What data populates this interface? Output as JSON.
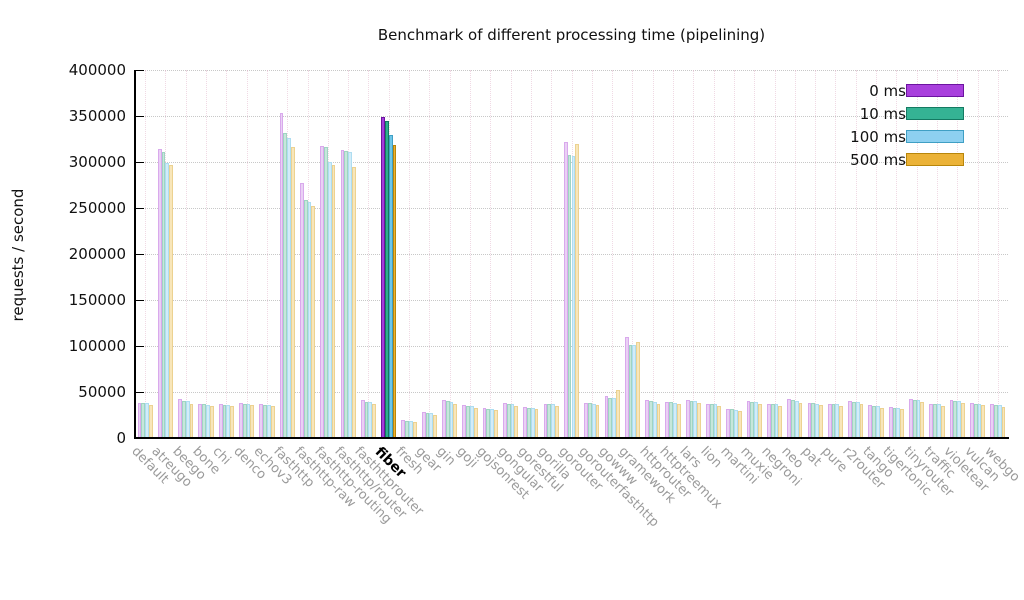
{
  "chart_data": {
    "type": "bar",
    "title": "Benchmark of different processing time (pipelining)",
    "ylabel": "requests / second",
    "xlabel": "",
    "ylim": [
      0,
      400000
    ],
    "ytick_step": 50000,
    "yticks": [
      0,
      50000,
      100000,
      150000,
      200000,
      250000,
      300000,
      350000,
      400000
    ],
    "grid": "dotted",
    "legend_position": "top-right",
    "highlight_category": "fiber",
    "series_names": [
      "0 ms",
      "10 ms",
      "100 ms",
      "500 ms"
    ],
    "series_colors_full": [
      "#a43ddb",
      "#2fae8f",
      "#6ec6e8",
      "#eeb02f"
    ],
    "series_borders_full": [
      "#6c14a0",
      "#147a62",
      "#3f9fc4",
      "#b8860b"
    ],
    "series_colors_pale": [
      "#ead0f5",
      "#c6e7db",
      "#d3ecf8",
      "#f8e6ba"
    ],
    "series_borders_pale": [
      "#d9a9ec",
      "#9fd4c2",
      "#aeddf1",
      "#ecd291"
    ],
    "legend_swatch_colors": [
      "#a940dd",
      "#35b394",
      "#8dd0f0",
      "#ebb237"
    ],
    "categories": [
      "default",
      "atreugo",
      "beego",
      "bone",
      "chi",
      "denco",
      "echov3",
      "fasthttp",
      "fasthttp-raw",
      "fasthttp-routing",
      "fasthttp/router",
      "fasthttprouter",
      "fiber",
      "fresh",
      "gear",
      "gin",
      "goji",
      "gojsonrest",
      "gongular",
      "gorestful",
      "gorilla",
      "gorouter",
      "gorouterfasthttp",
      "gowww",
      "gramework",
      "httprouter",
      "httptreemux",
      "lars",
      "lion",
      "martini",
      "muxie",
      "negroni",
      "neo",
      "pat",
      "pure",
      "r2router",
      "tango",
      "tigertonic",
      "tinyrouter",
      "traffic",
      "violetear",
      "vulcan",
      "webgo"
    ],
    "series": [
      {
        "name": "0 ms",
        "values": [
          38500,
          314000,
          42000,
          37500,
          36500,
          38000,
          37000,
          353000,
          277000,
          317000,
          313000,
          41000,
          349000,
          20000,
          28000,
          41000,
          35500,
          32500,
          38000,
          33500,
          37500,
          322000,
          38500,
          46000,
          110000,
          41000,
          39500,
          41000,
          37500,
          31500,
          40000,
          37500,
          42000,
          38500,
          37500,
          40000,
          35500,
          33500,
          42500,
          37500,
          41500,
          38000,
          36500
        ]
      },
      {
        "name": "10 ms",
        "values": [
          38000,
          311000,
          40500,
          36500,
          36000,
          37000,
          36000,
          332000,
          259000,
          316000,
          312000,
          39500,
          345000,
          19000,
          27000,
          40000,
          35000,
          32000,
          37000,
          33000,
          37000,
          308000,
          38000,
          44000,
          101000,
          40000,
          39000,
          40500,
          37000,
          31000,
          39500,
          37000,
          41000,
          38000,
          37000,
          39500,
          35000,
          33000,
          41500,
          37000,
          40500,
          37500,
          36000
        ]
      },
      {
        "name": "100 ms",
        "values": [
          38500,
          299000,
          40000,
          36000,
          36000,
          37000,
          36000,
          326000,
          257000,
          300000,
          311000,
          39000,
          329000,
          18500,
          27000,
          39500,
          34500,
          31500,
          36500,
          32500,
          36500,
          307000,
          37500,
          44000,
          101000,
          39500,
          38500,
          40000,
          36500,
          30500,
          39000,
          36500,
          40500,
          37500,
          36500,
          39000,
          34500,
          32500,
          41000,
          36500,
          40000,
          37000,
          35500
        ]
      },
      {
        "name": "500 ms",
        "values": [
          36000,
          297000,
          37500,
          34500,
          35000,
          35500,
          34500,
          316000,
          252000,
          297000,
          295000,
          37000,
          318000,
          17000,
          25500,
          37500,
          33000,
          30000,
          35000,
          31000,
          35000,
          320000,
          36000,
          52000,
          104000,
          37500,
          36500,
          38000,
          35000,
          29000,
          37000,
          35000,
          38500,
          36000,
          35000,
          37500,
          33000,
          31000,
          39000,
          35000,
          38000,
          35500,
          34000
        ]
      }
    ]
  },
  "legend": {
    "entries": [
      {
        "label": "0 ms"
      },
      {
        "label": "10 ms"
      },
      {
        "label": "100 ms"
      },
      {
        "label": "500 ms"
      }
    ]
  }
}
